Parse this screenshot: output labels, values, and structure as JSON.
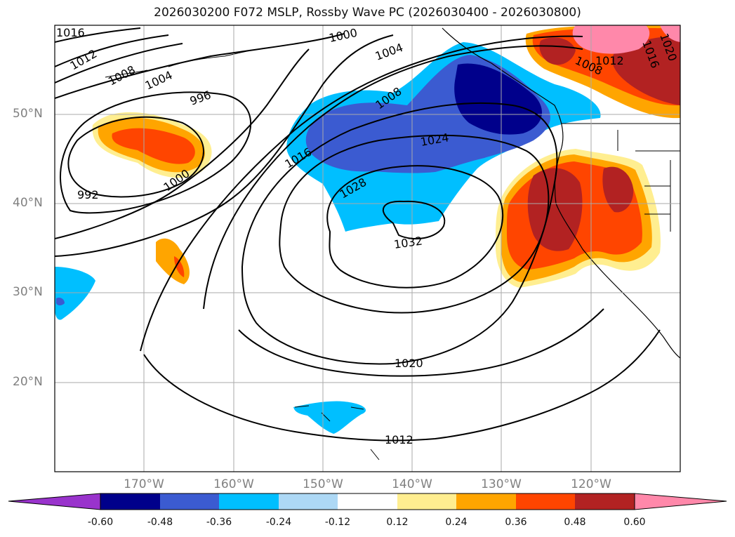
{
  "title": "2026030200 F072 MSLP, Rossby Wave PC (2026030400 - 2026030800)",
  "map": {
    "lat_labels": [
      "50°N",
      "40°N",
      "30°N",
      "20°N"
    ],
    "lon_labels": [
      "170°W",
      "160°W",
      "150°W",
      "140°W",
      "130°W",
      "120°W"
    ],
    "isobar_labels": [
      "1016",
      "1012",
      "1008",
      "1004",
      "996",
      "992",
      "1000",
      "1000",
      "1004",
      "1008",
      "1016",
      "1024",
      "1028",
      "1032",
      "1020",
      "1012",
      "1008",
      "1012",
      "1016",
      "1020"
    ]
  },
  "colorbar": {
    "ticks": [
      "-0.60",
      "-0.48",
      "-0.36",
      "-0.24",
      "-0.12",
      "0.12",
      "0.24",
      "0.36",
      "0.48",
      "0.60"
    ],
    "colors": [
      "#9933cc",
      "#00008b",
      "#3b5bd1",
      "#00bfff",
      "#add8f5",
      "#ffffff",
      "#ffee90",
      "#ffa500",
      "#ff4500",
      "#b22222",
      "#ff88aa"
    ]
  }
}
